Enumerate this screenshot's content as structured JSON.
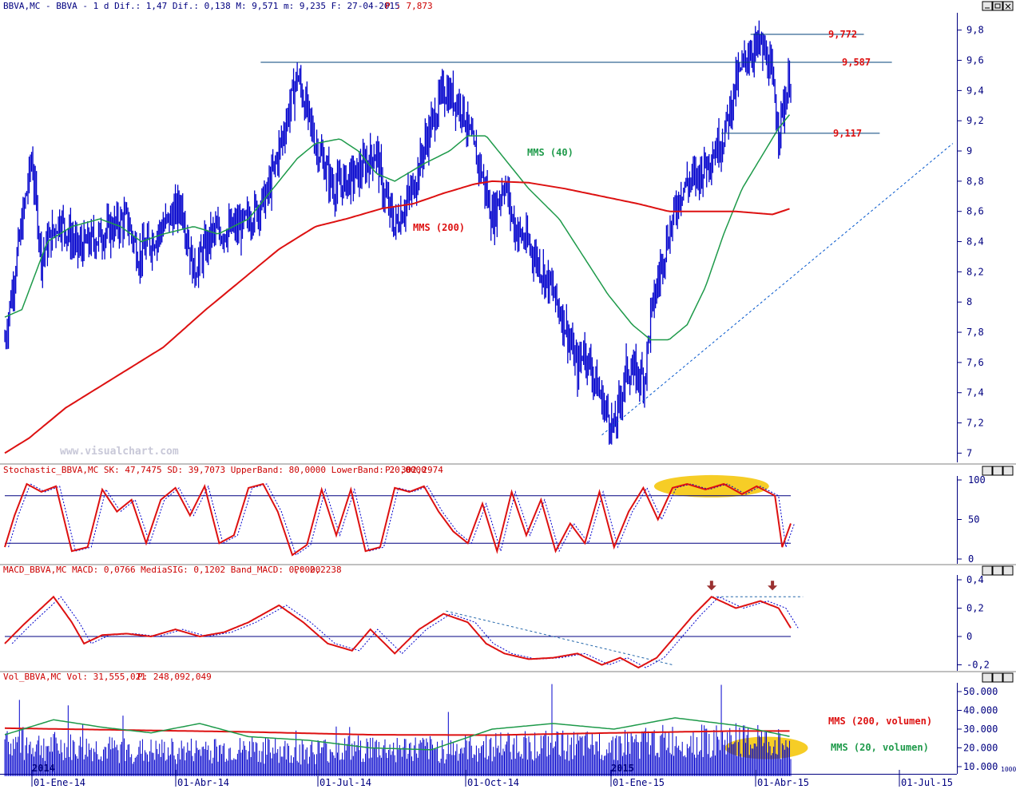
{
  "headers": {
    "price": {
      "text": "BBVA,MC - BBVA -  1 d Dif.: 1,47 Dif.: 0,138 M: 9,571 m: 9,235 F: 27-04-2015 ",
      "pending": "P : 7,873"
    },
    "stoch": {
      "text": "Stochastic_BBVA,MC SK: 47,7475 SD: 39,7073 UpperBand: 80,0000 LowerBand: 20,0000 ",
      "p": "P: 302,2974"
    },
    "macd": {
      "text": "MACD_BBVA,MC MACD: 0,0766 MediaSIG: 0,1202 Band_MACD: 0,0000 ",
      "p": "P: 2,2238"
    },
    "vol": {
      "text": "Vol_BBVA,MC Vol: 31,555,021 ",
      "p": "P: 248,092,049"
    }
  },
  "watermark": "www.visualchart.com",
  "window_icons": [
    "min-icon",
    "restore-icon",
    "close-icon"
  ],
  "colors": {
    "price": "#0000cc",
    "sma40": "#1e9a4a",
    "sma200": "#dd1111",
    "osc": "#dd1111",
    "signal": "#0000cc",
    "axis": "#000080",
    "highlight": "#f5c400"
  },
  "year_labels": [
    "2014",
    "2015"
  ],
  "chart_data": [
    {
      "type": "line",
      "panel": "price",
      "yticks": [
        "9,8",
        "9,6",
        "9,4",
        "9,2",
        "9",
        "8,8",
        "8,6",
        "8,4",
        "8,2",
        "8",
        "7,8",
        "7,6",
        "7,4",
        "7,2",
        "7"
      ],
      "ylim": [
        6.95,
        9.9
      ],
      "xticks": [
        "01-Ene-14",
        "01-Abr-14",
        "01-Jul-14",
        "01-Oct-14",
        "01-Ene-15",
        "01-Abr-15",
        "01-Jul-15"
      ],
      "price_keypoints": [
        [
          0,
          7.75
        ],
        [
          10,
          8.3
        ],
        [
          22,
          8.95
        ],
        [
          30,
          8.3
        ],
        [
          45,
          8.55
        ],
        [
          60,
          8.35
        ],
        [
          80,
          8.45
        ],
        [
          100,
          8.55
        ],
        [
          110,
          8.3
        ],
        [
          125,
          8.45
        ],
        [
          145,
          8.65
        ],
        [
          155,
          8.2
        ],
        [
          170,
          8.45
        ],
        [
          195,
          8.5
        ],
        [
          215,
          8.7
        ],
        [
          228,
          9.1
        ],
        [
          240,
          9.5
        ],
        [
          255,
          9.05
        ],
        [
          270,
          8.75
        ],
        [
          290,
          8.85
        ],
        [
          305,
          9.0
        ],
        [
          310,
          8.75
        ],
        [
          320,
          8.5
        ],
        [
          335,
          8.75
        ],
        [
          345,
          9.05
        ],
        [
          360,
          9.4
        ],
        [
          375,
          9.3
        ],
        [
          385,
          9.0
        ],
        [
          390,
          8.9
        ],
        [
          400,
          8.55
        ],
        [
          410,
          8.8
        ],
        [
          418,
          8.5
        ],
        [
          432,
          8.35
        ],
        [
          448,
          8.1
        ],
        [
          460,
          7.85
        ],
        [
          470,
          7.55
        ],
        [
          475,
          7.7
        ],
        [
          490,
          7.35
        ],
        [
          500,
          7.15
        ],
        [
          510,
          7.55
        ],
        [
          525,
          7.5
        ],
        [
          530,
          7.9
        ],
        [
          540,
          8.3
        ],
        [
          555,
          8.75
        ],
        [
          570,
          8.85
        ],
        [
          590,
          9.1
        ],
        [
          600,
          9.45
        ],
        [
          610,
          9.65
        ],
        [
          620,
          9.7
        ],
        [
          628,
          9.55
        ],
        [
          635,
          9.15
        ],
        [
          645,
          9.5
        ]
      ],
      "sma40_points": [
        [
          0,
          7.9
        ],
        [
          14,
          7.95
        ],
        [
          35,
          8.4
        ],
        [
          55,
          8.5
        ],
        [
          78,
          8.55
        ],
        [
          95,
          8.5
        ],
        [
          112,
          8.4
        ],
        [
          130,
          8.45
        ],
        [
          155,
          8.5
        ],
        [
          175,
          8.45
        ],
        [
          200,
          8.55
        ],
        [
          220,
          8.75
        ],
        [
          240,
          8.95
        ],
        [
          255,
          9.05
        ],
        [
          275,
          9.08
        ],
        [
          290,
          9.0
        ],
        [
          305,
          8.85
        ],
        [
          320,
          8.8
        ],
        [
          345,
          8.92
        ],
        [
          365,
          9.0
        ],
        [
          380,
          9.1
        ],
        [
          395,
          9.1
        ],
        [
          410,
          8.95
        ],
        [
          430,
          8.75
        ],
        [
          455,
          8.55
        ],
        [
          475,
          8.3
        ],
        [
          495,
          8.05
        ],
        [
          515,
          7.85
        ],
        [
          530,
          7.75
        ],
        [
          545,
          7.75
        ],
        [
          560,
          7.85
        ],
        [
          575,
          8.1
        ],
        [
          590,
          8.45
        ],
        [
          605,
          8.75
        ],
        [
          620,
          8.95
        ],
        [
          635,
          9.15
        ],
        [
          645,
          9.25
        ]
      ],
      "sma200_points": [
        [
          0,
          7.0
        ],
        [
          20,
          7.1
        ],
        [
          50,
          7.3
        ],
        [
          90,
          7.5
        ],
        [
          130,
          7.7
        ],
        [
          165,
          7.95
        ],
        [
          195,
          8.15
        ],
        [
          225,
          8.35
        ],
        [
          255,
          8.5
        ],
        [
          280,
          8.55
        ],
        [
          310,
          8.62
        ],
        [
          335,
          8.65
        ],
        [
          360,
          8.72
        ],
        [
          385,
          8.78
        ],
        [
          400,
          8.8
        ],
        [
          430,
          8.79
        ],
        [
          460,
          8.75
        ],
        [
          490,
          8.7
        ],
        [
          520,
          8.65
        ],
        [
          545,
          8.6
        ],
        [
          570,
          8.6
        ],
        [
          600,
          8.6
        ],
        [
          630,
          8.58
        ],
        [
          645,
          8.62
        ]
      ],
      "horizontal_lines": [
        {
          "y": 9.772,
          "x1": 612,
          "x2": 705
        },
        {
          "y": 9.587,
          "x1": 210,
          "x2": 728
        },
        {
          "y": 9.117,
          "x1": 588,
          "x2": 718
        }
      ],
      "level_labels": [
        "9,772",
        "9,587",
        "9,117"
      ],
      "trendline": {
        "from": [
          490,
          7.12
        ],
        "to": [
          778,
          9.05
        ]
      },
      "series": [
        {
          "name": "MMS (40)"
        },
        {
          "name": "MMS (200)"
        }
      ]
    },
    {
      "type": "line",
      "panel": "stochastic",
      "yticks": [
        "100",
        "50",
        "0"
      ],
      "ylim": [
        0,
        100
      ],
      "bands": [
        80,
        20
      ],
      "sk_points": [
        [
          0,
          15
        ],
        [
          8,
          55
        ],
        [
          18,
          95
        ],
        [
          30,
          85
        ],
        [
          42,
          92
        ],
        [
          55,
          10
        ],
        [
          68,
          15
        ],
        [
          80,
          88
        ],
        [
          92,
          60
        ],
        [
          104,
          75
        ],
        [
          116,
          20
        ],
        [
          128,
          75
        ],
        [
          140,
          90
        ],
        [
          152,
          55
        ],
        [
          164,
          92
        ],
        [
          176,
          20
        ],
        [
          188,
          30
        ],
        [
          200,
          90
        ],
        [
          212,
          95
        ],
        [
          224,
          60
        ],
        [
          236,
          5
        ],
        [
          248,
          18
        ],
        [
          260,
          88
        ],
        [
          272,
          30
        ],
        [
          284,
          88
        ],
        [
          296,
          10
        ],
        [
          308,
          15
        ],
        [
          320,
          90
        ],
        [
          332,
          85
        ],
        [
          344,
          92
        ],
        [
          356,
          60
        ],
        [
          368,
          35
        ],
        [
          380,
          20
        ],
        [
          392,
          70
        ],
        [
          404,
          10
        ],
        [
          416,
          85
        ],
        [
          428,
          30
        ],
        [
          440,
          75
        ],
        [
          452,
          10
        ],
        [
          464,
          45
        ],
        [
          476,
          20
        ],
        [
          488,
          85
        ],
        [
          500,
          15
        ],
        [
          512,
          60
        ],
        [
          524,
          90
        ],
        [
          536,
          50
        ],
        [
          548,
          90
        ],
        [
          560,
          95
        ],
        [
          575,
          88
        ],
        [
          590,
          95
        ],
        [
          605,
          82
        ],
        [
          617,
          92
        ],
        [
          632,
          80
        ],
        [
          638,
          15
        ],
        [
          645,
          45
        ]
      ],
      "highlight_ellipse": {
        "cx": 580,
        "cy": 92,
        "rx": 72,
        "ry": 14
      }
    },
    {
      "type": "line",
      "panel": "macd",
      "yticks": [
        "0,4",
        "0,2",
        "0",
        "-0,2"
      ],
      "ylim": [
        -0.24,
        0.4
      ],
      "macd_points": [
        [
          0,
          -0.05
        ],
        [
          15,
          0.08
        ],
        [
          40,
          0.28
        ],
        [
          55,
          0.1
        ],
        [
          65,
          -0.05
        ],
        [
          80,
          0.01
        ],
        [
          100,
          0.02
        ],
        [
          120,
          0.0
        ],
        [
          140,
          0.05
        ],
        [
          160,
          0.0
        ],
        [
          180,
          0.03
        ],
        [
          200,
          0.1
        ],
        [
          225,
          0.22
        ],
        [
          245,
          0.1
        ],
        [
          265,
          -0.05
        ],
        [
          285,
          -0.1
        ],
        [
          300,
          0.05
        ],
        [
          320,
          -0.12
        ],
        [
          340,
          0.05
        ],
        [
          360,
          0.16
        ],
        [
          380,
          0.1
        ],
        [
          395,
          -0.05
        ],
        [
          410,
          -0.12
        ],
        [
          430,
          -0.16
        ],
        [
          450,
          -0.15
        ],
        [
          470,
          -0.12
        ],
        [
          490,
          -0.2
        ],
        [
          505,
          -0.15
        ],
        [
          520,
          -0.22
        ],
        [
          535,
          -0.15
        ],
        [
          550,
          0.0
        ],
        [
          565,
          0.15
        ],
        [
          580,
          0.28
        ],
        [
          600,
          0.2
        ],
        [
          620,
          0.25
        ],
        [
          635,
          0.2
        ],
        [
          645,
          0.06
        ]
      ],
      "trendlines": [
        {
          "from": [
            362,
            0.18
          ],
          "to": [
            548,
            -0.2
          ]
        },
        {
          "from": [
            580,
            0.28
          ],
          "to": [
            655,
            0.28
          ]
        }
      ],
      "arrows_at": [
        [
          580,
          0.28
        ],
        [
          630,
          0.28
        ]
      ]
    },
    {
      "type": "bar",
      "panel": "volume",
      "yticks": [
        "50.000",
        "40.000",
        "30.000",
        "20.000",
        "10.000"
      ],
      "ylim": [
        5000,
        55000
      ],
      "tiny_scale_label": "1000",
      "volume_keypoints": [
        [
          0,
          25000
        ],
        [
          60,
          22000
        ],
        [
          120,
          20000
        ],
        [
          180,
          21000
        ],
        [
          240,
          20000
        ],
        [
          300,
          22000
        ],
        [
          360,
          21000
        ],
        [
          420,
          24000
        ],
        [
          480,
          23000
        ],
        [
          540,
          26000
        ],
        [
          600,
          26000
        ],
        [
          645,
          24000
        ]
      ],
      "vol_sma200_points": [
        [
          0,
          30500
        ],
        [
          100,
          29500
        ],
        [
          200,
          28500
        ],
        [
          300,
          27000
        ],
        [
          400,
          26800
        ],
        [
          500,
          28000
        ],
        [
          600,
          29000
        ],
        [
          645,
          29000
        ]
      ],
      "vol_sma20_points": [
        [
          0,
          27000
        ],
        [
          40,
          35000
        ],
        [
          80,
          31000
        ],
        [
          120,
          28000
        ],
        [
          160,
          33000
        ],
        [
          200,
          26000
        ],
        [
          250,
          24000
        ],
        [
          300,
          20000
        ],
        [
          350,
          19000
        ],
        [
          400,
          30000
        ],
        [
          450,
          33000
        ],
        [
          500,
          30000
        ],
        [
          550,
          36000
        ],
        [
          600,
          32000
        ],
        [
          645,
          26000
        ]
      ],
      "highlight_ellipse": {
        "cx": 625,
        "cy": 20000,
        "rx": 52,
        "ry": 14
      },
      "series": [
        {
          "name": "MMS (200, volumen)"
        },
        {
          "name": "MMS (20, volumen)"
        }
      ]
    }
  ]
}
